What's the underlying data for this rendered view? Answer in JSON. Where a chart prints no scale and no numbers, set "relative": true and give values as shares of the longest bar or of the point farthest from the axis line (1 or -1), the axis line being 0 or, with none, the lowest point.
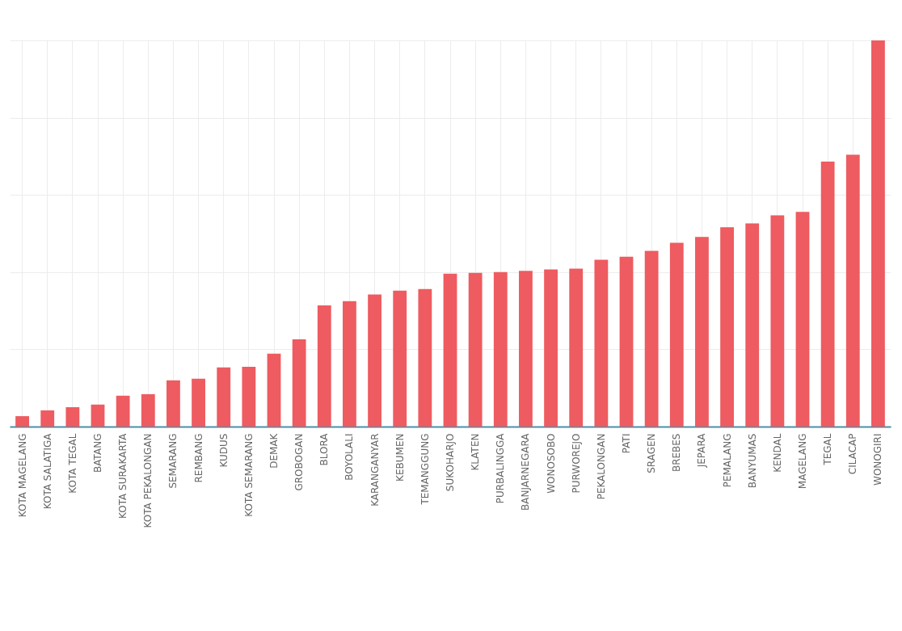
{
  "chart_data": {
    "type": "bar",
    "relative": true,
    "grid": true,
    "color": "#ee5b60",
    "categories": [
      "KOTA MAGELANG",
      "KOTA SALATIGA",
      "KOTA TEGAL",
      "BATANG",
      "KOTA SURAKARTA",
      "KOTA PEKALONGAN",
      "SEMARANG",
      "REMBANG",
      "KUDUS",
      "KOTA SEMARANG",
      "DEMAK",
      "GROBOGAN",
      "BLORA",
      "BOYOLALI",
      "KARANGANYAR",
      "KEBUMEN",
      "TEMANGGUNG",
      "SUKOHARJO",
      "KLATEN",
      "PURBALINGGA",
      "BANJARNEGARA",
      "WONOSOBO",
      "PURWOREJO",
      "PEKALONGAN",
      "PATI",
      "SRAGEN",
      "BREBES",
      "JEPARA",
      "PEMALANG",
      "BANYUMAS",
      "KENDAL",
      "MAGELANG",
      "TEGAL",
      "CILACAP",
      "WONOGIRI"
    ],
    "values": [
      0.027,
      0.042,
      0.05,
      0.057,
      0.08,
      0.084,
      0.12,
      0.124,
      0.153,
      0.155,
      0.189,
      0.226,
      0.314,
      0.325,
      0.342,
      0.352,
      0.356,
      0.396,
      0.398,
      0.4,
      0.403,
      0.407,
      0.409,
      0.432,
      0.44,
      0.455,
      0.476,
      0.491,
      0.516,
      0.526,
      0.547,
      0.556,
      0.686,
      0.704,
      1
    ]
  }
}
